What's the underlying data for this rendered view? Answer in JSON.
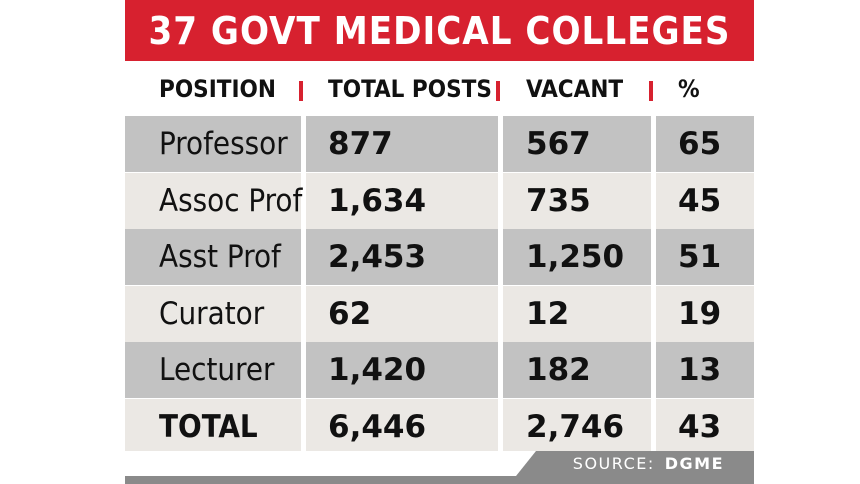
{
  "title": "37 GOVT MEDICAL COLLEGES",
  "headers": [
    "POSITION",
    "TOTAL POSTS",
    "VACANT",
    "%"
  ],
  "rows": [
    {
      "position": "Professor",
      "total": "877",
      "vacant": "567",
      "pct": "65"
    },
    {
      "position": "Assoc Prof",
      "total": "1,634",
      "vacant": "735",
      "pct": "45"
    },
    {
      "position": "Asst Prof",
      "total": "2,453",
      "vacant": "1,250",
      "pct": "51"
    },
    {
      "position": "Curator",
      "total": "62",
      "vacant": "12",
      "pct": "19"
    },
    {
      "position": "Lecturer",
      "total": "1,420",
      "vacant": "182",
      "pct": "13"
    },
    {
      "position": "TOTAL",
      "total": "6,446",
      "vacant": "2,746",
      "pct": "43"
    }
  ],
  "source_label": "SOURCE:",
  "source_name": "DGME",
  "colors": {
    "accent": "#d7212f",
    "row_dark": "#c2c2c2",
    "row_light": "#ebe8e4"
  },
  "chart_data": {
    "type": "table",
    "title": "37 GOVT MEDICAL COLLEGES",
    "columns": [
      "POSITION",
      "TOTAL POSTS",
      "VACANT",
      "%"
    ],
    "rows": [
      [
        "Professor",
        877,
        567,
        65
      ],
      [
        "Assoc Prof",
        1634,
        735,
        45
      ],
      [
        "Asst Prof",
        2453,
        1250,
        51
      ],
      [
        "Curator",
        62,
        12,
        19
      ],
      [
        "Lecturer",
        1420,
        182,
        13
      ],
      [
        "TOTAL",
        6446,
        2746,
        43
      ]
    ]
  }
}
